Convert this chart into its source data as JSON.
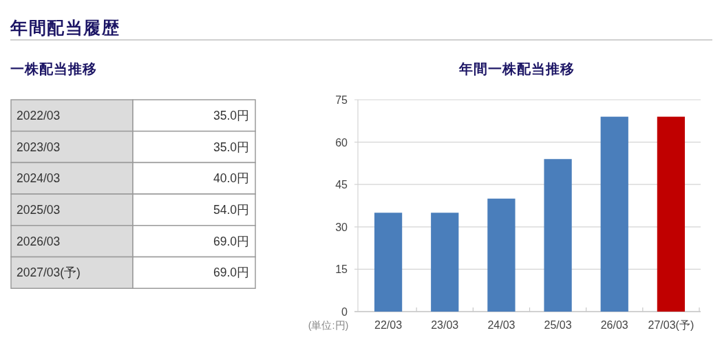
{
  "chart_data": {
    "type": "bar",
    "title": "年間一株配当推移",
    "categories": [
      "22/03",
      "23/03",
      "24/03",
      "25/03",
      "26/03",
      "27/03(予)"
    ],
    "values": [
      35,
      35,
      40,
      54,
      69,
      69
    ],
    "colors": [
      "#4a7ebb",
      "#4a7ebb",
      "#4a7ebb",
      "#4a7ebb",
      "#4a7ebb",
      "#c00000"
    ],
    "ylim": [
      0,
      75
    ],
    "yticks": [
      0,
      15,
      30,
      45,
      60,
      75
    ],
    "grid": "y",
    "annotations": [
      "年間配当履歴",
      "一株配当推移",
      "2022/03",
      "35.0円",
      "2023/03",
      "35.0円",
      "2024/03",
      "40.0円",
      "2025/03",
      "54.0円",
      "2026/03",
      "69.0円",
      "2027/03(予)",
      "69.0円",
      "(単位:円)"
    ]
  }
}
